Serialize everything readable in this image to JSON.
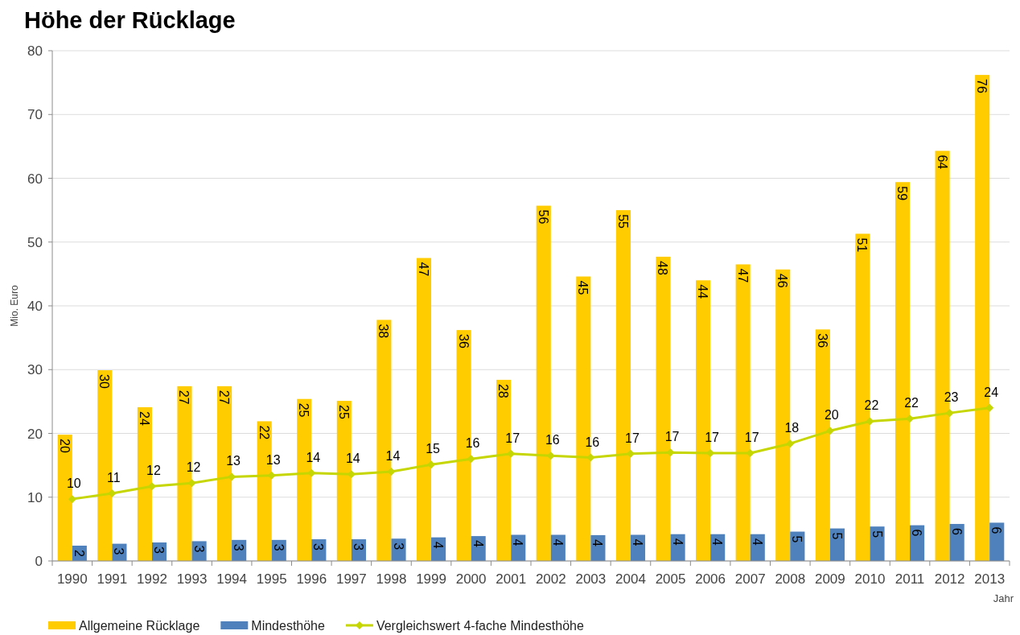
{
  "chart_data": {
    "type": "bar",
    "title": "Höhe der Rücklage",
    "ylabel": "Mio. Euro",
    "xlabel": "Jahr",
    "categories": [
      "1990",
      "1991",
      "1992",
      "1993",
      "1994",
      "1995",
      "1996",
      "1997",
      "1998",
      "1999",
      "2000",
      "2001",
      "2002",
      "2003",
      "2004",
      "2005",
      "2006",
      "2007",
      "2008",
      "2009",
      "2010",
      "2011",
      "2012",
      "2013"
    ],
    "ylim": [
      0,
      80
    ],
    "yticks": [
      0,
      10,
      20,
      30,
      40,
      50,
      60,
      70,
      80
    ],
    "grid": "y",
    "legend": "bottom",
    "marker": "diamond",
    "series": [
      {
        "name": "Allgemeine Rücklage",
        "color": "#ffcc00",
        "values": [
          19.8,
          29.9,
          24.1,
          27.4,
          27.4,
          21.9,
          25.4,
          25.1,
          37.8,
          47.5,
          36.2,
          28.4,
          55.7,
          44.6,
          55.0,
          47.7,
          44.0,
          46.5,
          45.7,
          36.3,
          51.3,
          59.4,
          64.3,
          76.2
        ],
        "value_labels": [
          "20",
          "30",
          "24",
          "27",
          "27",
          "22",
          "25",
          "25",
          "38",
          "47",
          "36",
          "28",
          "56",
          "45",
          "55",
          "48",
          "44",
          "47",
          "46",
          "36",
          "51",
          "59",
          "64",
          "76"
        ]
      },
      {
        "name": "Mindesthöhe",
        "color": "#4f81bd",
        "values": [
          2.4,
          2.7,
          2.9,
          3.1,
          3.3,
          3.3,
          3.4,
          3.4,
          3.5,
          3.7,
          3.9,
          4.1,
          4.1,
          4.05,
          4.1,
          4.2,
          4.2,
          4.2,
          4.6,
          5.1,
          5.4,
          5.6,
          5.8,
          6.0
        ],
        "value_labels": [
          "2",
          "3",
          "3",
          "3",
          "3",
          "3",
          "3",
          "3",
          "3",
          "4",
          "4",
          "4",
          "4",
          "4",
          "4",
          "4",
          "4",
          "4",
          "5",
          "5",
          "5",
          "6",
          "6",
          "6"
        ]
      },
      {
        "name": "Vergleichswert 4-fache Mindesthöhe",
        "type": "line",
        "color": "#c5d600",
        "values": [
          9.7,
          10.6,
          11.7,
          12.2,
          13.2,
          13.4,
          13.8,
          13.6,
          14.0,
          15.1,
          16.0,
          16.8,
          16.5,
          16.2,
          16.8,
          17.0,
          16.9,
          16.9,
          18.4,
          20.4,
          21.9,
          22.3,
          23.2,
          24.0
        ],
        "value_labels": [
          "10",
          "11",
          "12",
          "12",
          "13",
          "13",
          "14",
          "14",
          "14",
          "15",
          "16",
          "17",
          "16",
          "16",
          "17",
          "17",
          "17",
          "17",
          "18",
          "20",
          "22",
          "22",
          "23",
          "24"
        ]
      }
    ]
  }
}
